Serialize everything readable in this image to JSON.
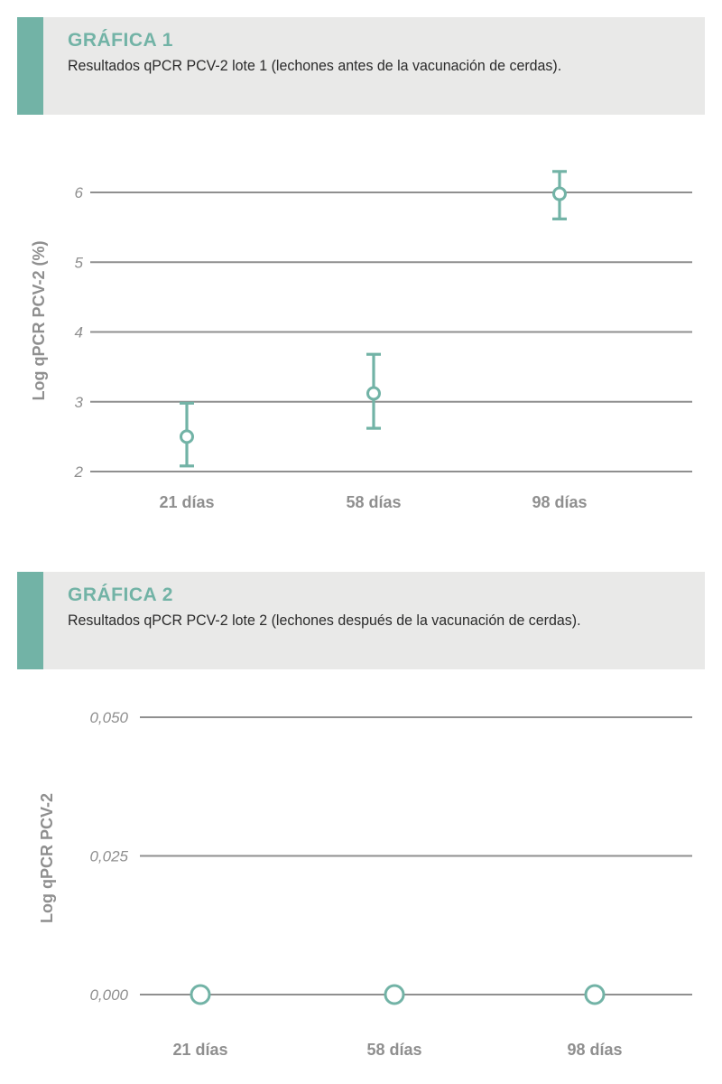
{
  "charts": [
    {
      "label": "GRÁFICA 1",
      "subtitle": "Resultados qPCR PCV-2 lote 1 (lechones antes de la vacunación de cerdas)."
    },
    {
      "label": "GRÁFICA 2",
      "subtitle": "Resultados qPCR PCV-2 lote 2 (lechones después de la vacunación de cerdas)."
    }
  ],
  "colors": {
    "accent": "#72b3a6",
    "header_bg": "#e9e9e8",
    "grid": "#8f8f8f",
    "text_muted": "#8f8f8f",
    "text_dark": "#2b2b2b"
  },
  "chart_data": [
    {
      "type": "scatter",
      "error_bars": true,
      "categories": [
        "21 días",
        "58 días",
        "98 días"
      ],
      "values": [
        2.5,
        3.12,
        5.98
      ],
      "error_low": [
        2.08,
        2.62,
        5.62
      ],
      "error_high": [
        2.98,
        3.68,
        6.3
      ],
      "ylabel": "Log qPCR PCV-2 (%)",
      "xlabel": "",
      "ylim": [
        2,
        6
      ],
      "yticks": [
        2,
        3,
        4,
        5,
        6
      ],
      "ytick_labels": [
        "2",
        "3",
        "4",
        "5",
        "6"
      ],
      "grid": true
    },
    {
      "type": "scatter",
      "error_bars": false,
      "categories": [
        "21 días",
        "58 días",
        "98 días"
      ],
      "values": [
        0,
        0,
        0
      ],
      "ylabel": "Log qPCR PCV-2",
      "xlabel": "",
      "ylim": [
        0,
        0.05
      ],
      "yticks": [
        0,
        0.025,
        0.05
      ],
      "ytick_labels": [
        "0,000",
        "0,025",
        "0,050"
      ],
      "grid": true
    }
  ]
}
